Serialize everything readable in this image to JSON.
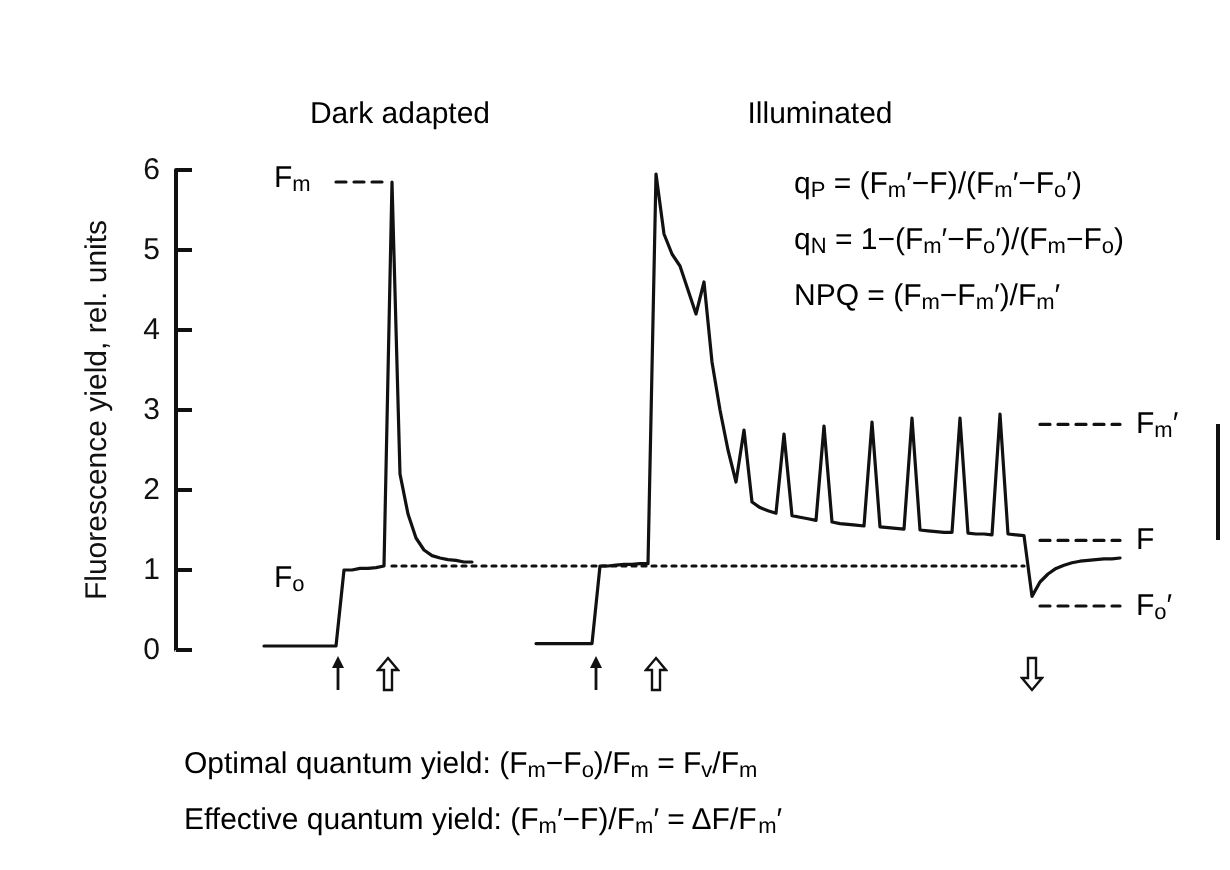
{
  "chart_data": {
    "type": "line",
    "ylabel": "Fluorescence yield, rel. units",
    "ylim": [
      0,
      6
    ],
    "yticks": [
      0,
      1,
      2,
      3,
      4,
      5,
      6
    ],
    "tick_labels": "y",
    "grid": false,
    "categories": [
      null,
      null,
      null,
      null,
      null,
      null,
      null,
      null,
      null,
      null,
      null,
      null,
      null,
      null,
      null,
      null,
      null,
      null,
      null,
      null,
      null,
      null,
      null,
      null,
      null,
      null,
      null,
      null,
      null,
      null,
      null,
      null,
      null,
      null,
      null,
      null,
      null,
      null,
      null,
      null,
      null,
      null,
      null,
      null,
      null,
      null,
      null,
      null,
      null,
      null,
      null,
      null,
      null,
      null,
      null,
      null,
      null,
      null,
      null,
      null,
      null,
      null,
      null,
      null,
      null,
      null,
      null,
      null,
      null,
      null,
      null,
      null,
      null,
      null,
      null,
      null,
      null,
      null,
      null,
      null,
      null,
      null,
      null,
      null,
      null,
      null,
      null,
      null,
      null,
      null,
      null,
      null,
      null,
      null,
      null,
      null,
      null,
      null,
      null,
      null,
      null,
      null,
      null,
      null,
      null,
      null,
      null,
      null,
      null,
      null,
      null,
      null,
      null,
      null,
      null,
      null,
      null,
      null,
      null
    ],
    "series": [
      {
        "color": "#111111",
        "line_style": "solid",
        "values": [
          null,
          null,
          null,
          null,
          null,
          null,
          null,
          null,
          null,
          null,
          null,
          0.05,
          0.05,
          0.05,
          0.05,
          0.05,
          0.05,
          0.05,
          0.05,
          0.05,
          0.05,
          1.0,
          1.0,
          1.02,
          1.02,
          1.03,
          1.05,
          5.85,
          2.2,
          1.7,
          1.4,
          1.25,
          1.18,
          1.15,
          1.13,
          1.12,
          1.1,
          1.1,
          null,
          null,
          null,
          null,
          null,
          null,
          null,
          null,
          null,
          null,
          null,
          null,
          null,
          null,
          null,
          null,
          null,
          null,
          null,
          null,
          null,
          null,
          null,
          null,
          null,
          null,
          null,
          null,
          null,
          null,
          null,
          null,
          null,
          null,
          null,
          null,
          null,
          null,
          null,
          null,
          null,
          null,
          null,
          null,
          null,
          null,
          null,
          null,
          null,
          null,
          null,
          null,
          null,
          null,
          null,
          null,
          null,
          null,
          null,
          null,
          null,
          null,
          null,
          null,
          null,
          null,
          null,
          null,
          null,
          null,
          null,
          null,
          null,
          null,
          null,
          null,
          null,
          null,
          null,
          null,
          null
        ]
      },
      {
        "color": "#111111",
        "line_style": "solid",
        "values": [
          null,
          null,
          null,
          null,
          null,
          null,
          null,
          null,
          null,
          null,
          null,
          null,
          null,
          null,
          null,
          null,
          null,
          null,
          null,
          null,
          null,
          null,
          null,
          null,
          null,
          null,
          null,
          null,
          null,
          null,
          null,
          null,
          null,
          null,
          null,
          null,
          null,
          null,
          null,
          null,
          null,
          null,
          null,
          null,
          null,
          0.08,
          0.08,
          0.08,
          0.08,
          0.08,
          0.08,
          0.08,
          0.08,
          1.05,
          1.05,
          1.06,
          1.07,
          1.07,
          1.08,
          1.08,
          5.95,
          5.2,
          4.95,
          4.8,
          4.5,
          4.2,
          4.6,
          3.6,
          3.0,
          2.5,
          2.1,
          2.75,
          1.85,
          1.78,
          1.74,
          1.71,
          2.7,
          1.68,
          1.66,
          1.64,
          1.62,
          2.8,
          1.6,
          1.58,
          1.57,
          1.56,
          1.55,
          2.85,
          1.54,
          1.53,
          1.52,
          1.51,
          2.9,
          1.5,
          1.49,
          1.48,
          1.47,
          1.47,
          2.9,
          1.46,
          1.45,
          1.45,
          1.44,
          2.95,
          1.45,
          1.44,
          1.43,
          0.67,
          0.85,
          0.95,
          1.02,
          1.06,
          1.09,
          1.11,
          1.12,
          1.13,
          1.14,
          1.14,
          1.15
        ]
      },
      {
        "color": "#111111",
        "line_style": "dotted",
        "values": [
          null,
          null,
          null,
          null,
          null,
          null,
          null,
          null,
          null,
          null,
          null,
          null,
          null,
          null,
          null,
          null,
          null,
          null,
          null,
          null,
          null,
          null,
          null,
          null,
          null,
          null,
          null,
          1.05,
          1.05,
          1.05,
          1.05,
          1.05,
          1.05,
          1.05,
          1.05,
          1.05,
          1.05,
          1.05,
          1.05,
          1.05,
          1.05,
          1.05,
          1.05,
          1.05,
          1.05,
          1.05,
          1.05,
          1.05,
          1.05,
          1.05,
          1.05,
          1.05,
          1.05,
          1.05,
          1.05,
          1.05,
          1.05,
          1.05,
          1.05,
          1.05,
          1.05,
          1.05,
          1.05,
          1.05,
          1.05,
          1.05,
          1.05,
          1.05,
          1.05,
          1.05,
          1.05,
          1.05,
          1.05,
          1.05,
          1.05,
          1.05,
          1.05,
          1.05,
          1.05,
          1.05,
          1.05,
          1.05,
          1.05,
          1.05,
          1.05,
          1.05,
          1.05,
          1.05,
          1.05,
          1.05,
          1.05,
          1.05,
          1.05,
          1.05,
          1.05,
          1.05,
          1.05,
          1.05,
          1.05,
          1.05,
          1.05,
          1.05,
          1.05,
          1.05,
          1.05,
          1.05,
          1.05,
          null,
          null,
          null,
          null,
          null,
          null,
          null,
          null,
          null,
          null,
          null,
          null
        ]
      },
      {
        "color": "#111111",
        "line_style": "dashed",
        "values": [
          null,
          null,
          null,
          null,
          null,
          null,
          null,
          null,
          null,
          null,
          null,
          null,
          null,
          null,
          null,
          null,
          null,
          null,
          null,
          null,
          5.85,
          5.85,
          5.85,
          5.85,
          5.85,
          5.85,
          5.85,
          null,
          null,
          null,
          null,
          null,
          null,
          null,
          null,
          null,
          null,
          null,
          null,
          null,
          null,
          null,
          null,
          null,
          null,
          null,
          null,
          null,
          null,
          null,
          null,
          null,
          null,
          null,
          null,
          null,
          null,
          null,
          null,
          null,
          null,
          null,
          null,
          null,
          null,
          null,
          null,
          null,
          null,
          null,
          null,
          null,
          null,
          null,
          null,
          null,
          null,
          null,
          null,
          null,
          null,
          null,
          null,
          null,
          null,
          null,
          null,
          null,
          null,
          null,
          null,
          null,
          null,
          null,
          null,
          null,
          null,
          null,
          null,
          null,
          null,
          null,
          null,
          null,
          null,
          null,
          null,
          null,
          null,
          null,
          null,
          null,
          null,
          null,
          null,
          null,
          null,
          null,
          null
        ]
      },
      {
        "color": "#111111",
        "line_style": "dashed",
        "values": [
          null,
          null,
          null,
          null,
          null,
          null,
          null,
          null,
          null,
          null,
          null,
          null,
          null,
          null,
          null,
          null,
          null,
          null,
          null,
          null,
          null,
          null,
          null,
          null,
          null,
          null,
          null,
          null,
          null,
          null,
          null,
          null,
          null,
          null,
          null,
          null,
          null,
          null,
          null,
          null,
          null,
          null,
          null,
          null,
          null,
          null,
          null,
          null,
          null,
          null,
          null,
          null,
          null,
          null,
          null,
          null,
          null,
          null,
          null,
          null,
          null,
          null,
          null,
          null,
          null,
          null,
          null,
          null,
          null,
          null,
          null,
          null,
          null,
          null,
          null,
          null,
          null,
          null,
          null,
          null,
          null,
          null,
          null,
          null,
          null,
          null,
          null,
          null,
          null,
          null,
          null,
          null,
          null,
          null,
          null,
          null,
          null,
          null,
          null,
          null,
          null,
          null,
          null,
          null,
          null,
          null,
          null,
          null,
          2.82,
          2.82,
          2.82,
          2.82,
          2.82,
          2.82,
          2.82,
          2.82,
          2.82,
          2.82,
          2.82
        ]
      },
      {
        "color": "#111111",
        "line_style": "dashed",
        "values": [
          null,
          null,
          null,
          null,
          null,
          null,
          null,
          null,
          null,
          null,
          null,
          null,
          null,
          null,
          null,
          null,
          null,
          null,
          null,
          null,
          null,
          null,
          null,
          null,
          null,
          null,
          null,
          null,
          null,
          null,
          null,
          null,
          null,
          null,
          null,
          null,
          null,
          null,
          null,
          null,
          null,
          null,
          null,
          null,
          null,
          null,
          null,
          null,
          null,
          null,
          null,
          null,
          null,
          null,
          null,
          null,
          null,
          null,
          null,
          null,
          null,
          null,
          null,
          null,
          null,
          null,
          null,
          null,
          null,
          null,
          null,
          null,
          null,
          null,
          null,
          null,
          null,
          null,
          null,
          null,
          null,
          null,
          null,
          null,
          null,
          null,
          null,
          null,
          null,
          null,
          null,
          null,
          null,
          null,
          null,
          null,
          null,
          null,
          null,
          null,
          null,
          null,
          null,
          null,
          null,
          null,
          null,
          null,
          1.37,
          1.37,
          1.37,
          1.37,
          1.37,
          1.37,
          1.37,
          1.37,
          1.37,
          1.37,
          1.37
        ]
      },
      {
        "color": "#111111",
        "line_style": "dashed",
        "values": [
          null,
          null,
          null,
          null,
          null,
          null,
          null,
          null,
          null,
          null,
          null,
          null,
          null,
          null,
          null,
          null,
          null,
          null,
          null,
          null,
          null,
          null,
          null,
          null,
          null,
          null,
          null,
          null,
          null,
          null,
          null,
          null,
          null,
          null,
          null,
          null,
          null,
          null,
          null,
          null,
          null,
          null,
          null,
          null,
          null,
          null,
          null,
          null,
          null,
          null,
          null,
          null,
          null,
          null,
          null,
          null,
          null,
          null,
          null,
          null,
          null,
          null,
          null,
          null,
          null,
          null,
          null,
          null,
          null,
          null,
          null,
          null,
          null,
          null,
          null,
          null,
          null,
          null,
          null,
          null,
          null,
          null,
          null,
          null,
          null,
          null,
          null,
          null,
          null,
          null,
          null,
          null,
          null,
          null,
          null,
          null,
          null,
          null,
          null,
          null,
          null,
          null,
          null,
          null,
          null,
          null,
          null,
          null,
          0.55,
          0.55,
          0.55,
          0.55,
          0.55,
          0.55,
          0.55,
          0.55,
          0.55,
          0.55,
          0.55
        ]
      }
    ],
    "annotations": [
      "Dark adapted",
      "Illuminated",
      "q$_{P}$ = (F$_{m}$′−F)/(F$_{m}$′−F$_{o}$′)",
      "q$_{N}$ = 1−(F$_{m}$′−F$_{o}$′)/(F$_{m}$−F$_{o}$)",
      "NPQ = (F$_{m}$−F$_{m}$′)/F$_{m}$′",
      "F$_{m}$",
      "F$_{o}$",
      "F$_{m}$′",
      "F",
      "F$_{o}$′",
      "Optimal quantum yield: (F$_{m}$−F$_{o}$)/F$_{m}$ = F$_{v}$/F$_{m}$",
      "Effective quantum yield: (F$_{m}$′−F)/F$_{m}$′ = ΔF/F$_{m}$′"
    ]
  }
}
